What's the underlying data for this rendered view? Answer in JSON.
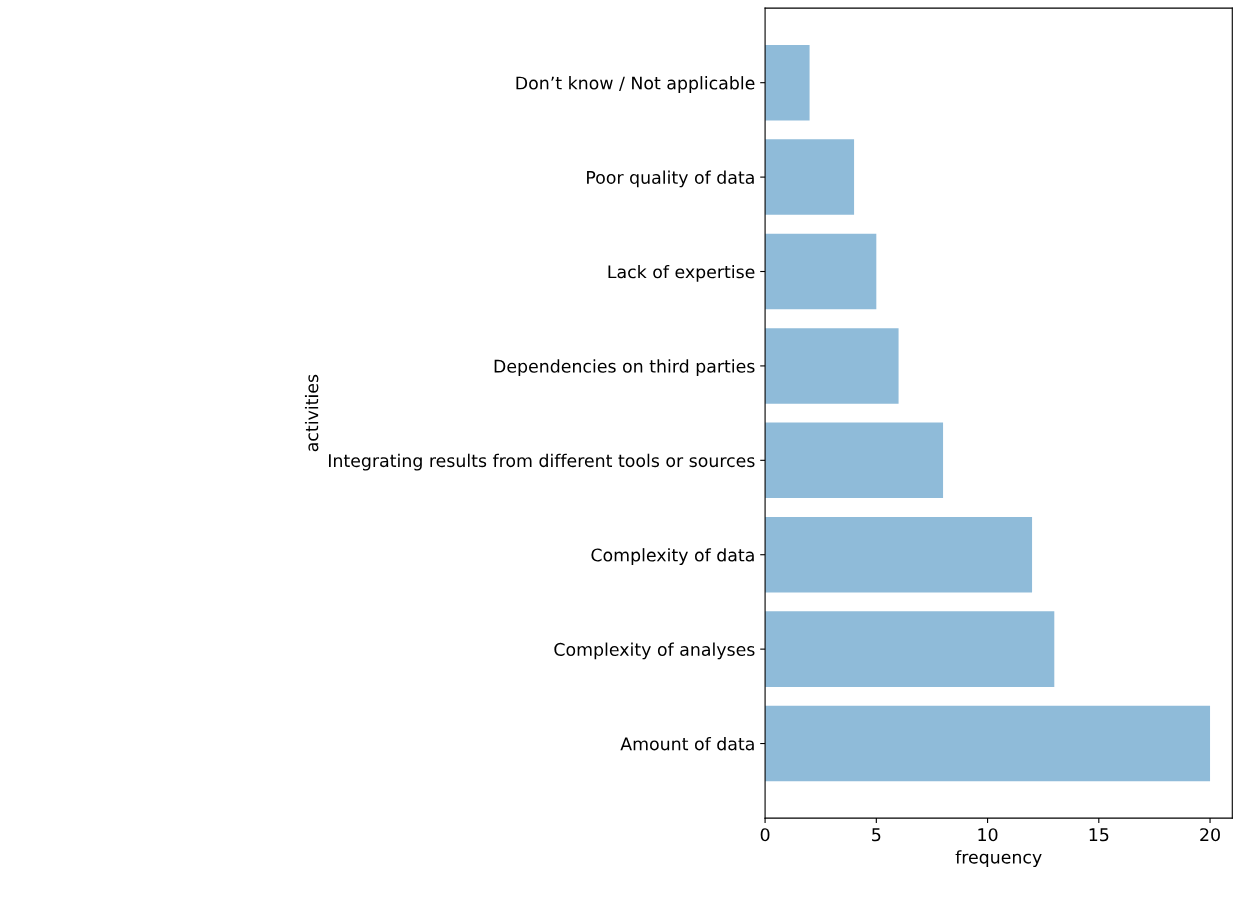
{
  "chart_data": {
    "type": "bar",
    "orientation": "horizontal",
    "categories": [
      "Don’t know / Not applicable",
      "Poor quality of data",
      "Lack of expertise",
      "Dependencies on third parties",
      "Integrating results from different tools or sources",
      "Complexity of data",
      "Complexity of analyses",
      "Amount of data"
    ],
    "values": [
      2,
      4,
      5,
      6,
      8,
      12,
      13,
      20
    ],
    "color": "#8fbbd9",
    "xlabel": "frequency",
    "ylabel": "activities",
    "xlim": [
      0,
      21
    ],
    "xticks": [
      0,
      5,
      10,
      15,
      20
    ],
    "grid": false,
    "legend": false
  }
}
